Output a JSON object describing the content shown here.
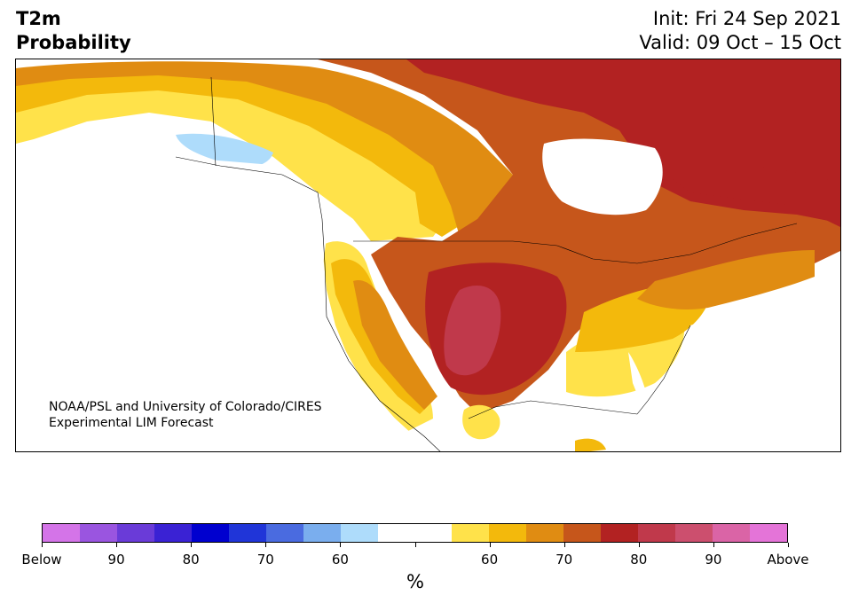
{
  "header": {
    "title_line1": "T2m",
    "title_line2": "Probability",
    "init": "Init: Fri 24 Sep 2021",
    "valid": "Valid: 09 Oct – 15 Oct"
  },
  "map": {
    "region": "North America",
    "credit_line1": "NOAA/PSL and University of Colorado/CIRES",
    "credit_line2": "Experimental LIM Forecast",
    "colors": {
      "y55": "#ffe24a",
      "y60": "#f3b90c",
      "o65": "#e08c12",
      "o70": "#c6561b",
      "r75": "#b22222",
      "r80": "#c0394b",
      "p85": "#cc4f6e",
      "below60": "#aedcfb",
      "land_line": "#000000"
    }
  },
  "colorbar": {
    "unit_label": "%",
    "colors": [
      "#d474e8",
      "#9a55e0",
      "#6a3bd8",
      "#3a22d4",
      "#0000cf",
      "#2035d8",
      "#4a6be0",
      "#7aaeee",
      "#aedcfb",
      "#ffffff",
      "#ffffff",
      "#ffe24a",
      "#f3b90c",
      "#e08c12",
      "#c6561b",
      "#b22222",
      "#c0394b",
      "#cc4f6e",
      "#da64a6",
      "#e474d8"
    ],
    "labels": [
      "Below",
      "90",
      "80",
      "70",
      "60",
      "",
      "60",
      "70",
      "80",
      "90",
      "Above"
    ]
  }
}
